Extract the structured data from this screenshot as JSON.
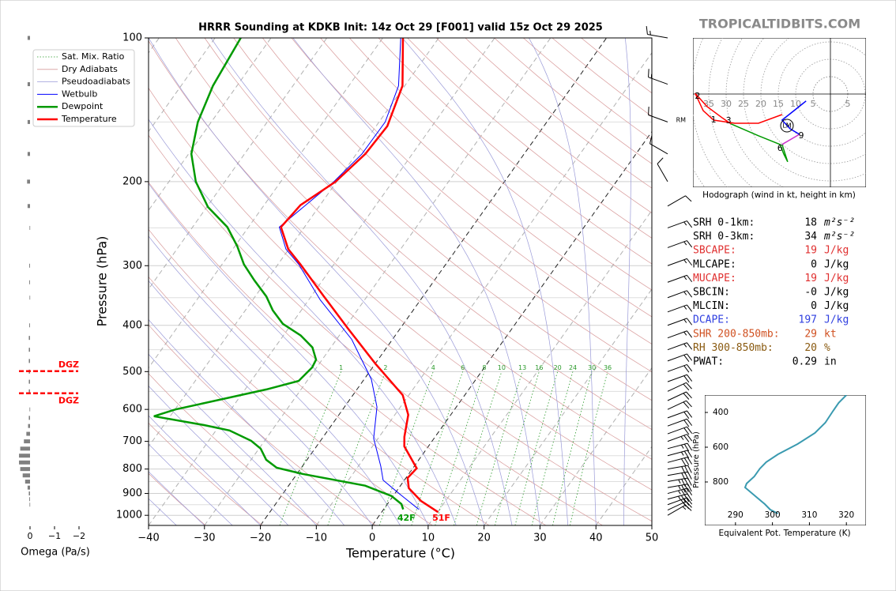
{
  "header": {
    "title": "HRRR Sounding at KDKB Init: 14z Oct 29 [F001] valid 15z Oct 29 2025",
    "watermark": "TROPICALTIDBITS.COM"
  },
  "chart_data": [
    {
      "type": "skewt",
      "xlabel": "Temperature (°C)",
      "ylabel": "Pressure (hPa)",
      "xlim": [
        -40,
        50
      ],
      "xticks": [
        {
          "value": -40,
          "label": "−40"
        },
        {
          "value": -30,
          "label": "−30"
        },
        {
          "value": -20,
          "label": "−20"
        },
        {
          "value": -10,
          "label": "−10"
        },
        0,
        10,
        20,
        30,
        40,
        50
      ],
      "ylim": [
        1050,
        100
      ],
      "yticks": [
        100,
        200,
        300,
        400,
        500,
        600,
        700,
        800,
        900,
        1000
      ],
      "log_y": true,
      "grid": true,
      "y_minor_grid": [
        150,
        250,
        350,
        450,
        550,
        650,
        750,
        850,
        950
      ],
      "reference_lines": [
        {
          "name": "Sat. Mix. Ratio",
          "color": "#2a9a2a"
        },
        {
          "name": "Dry Adiabats",
          "color": "#d89a9a"
        },
        {
          "name": "Pseudoadiabats",
          "color": "#9a9ad8"
        }
      ],
      "mixing_ratio_labels": [
        1,
        2,
        4,
        6,
        8,
        10,
        13,
        16,
        20,
        24,
        30,
        36
      ],
      "series": [
        {
          "name": "Wetbulb",
          "color": "#0000ff",
          "pressure": [
            972,
            901,
            844,
            789,
            690,
            593,
            519,
            428,
            354,
            298,
            277,
            249,
            200,
            175,
            150,
            126,
            100
          ],
          "values": [
            6.3,
            0.8,
            -3.8,
            -6.0,
            -10.8,
            -14.2,
            -18.7,
            -27.3,
            -37.9,
            -46.3,
            -50.5,
            -54.5,
            -50.5,
            -49.0,
            -48.9,
            -51.1,
            -56.8
          ]
        },
        {
          "name": "Dewpoint",
          "color": "#009a00",
          "pressure": [
            972,
            947,
            911,
            867,
            819,
            795,
            765,
            725,
            698,
            664,
            647,
            620,
            600,
            545,
            523,
            490,
            472,
            445,
            420,
            397,
            372,
            348,
            322,
            298,
            273,
            249,
            226,
            200,
            175,
            150,
            126,
            100
          ],
          "values": [
            3.5,
            2.5,
            -0.3,
            -6.3,
            -19.0,
            -24.4,
            -27.3,
            -29.7,
            -32.4,
            -37.6,
            -42.9,
            -52.9,
            -49.9,
            -36.2,
            -31.5,
            -30.8,
            -31.1,
            -33.3,
            -36.9,
            -41.6,
            -45.1,
            -48.0,
            -52.2,
            -56.1,
            -59.6,
            -63.8,
            -69.8,
            -75.2,
            -79.5,
            -82.4,
            -84.3,
            -85.4
          ]
        },
        {
          "name": "Temperature",
          "color": "#ff0000",
          "pressure": [
            985,
            933,
            877,
            835,
            797,
            717,
            685,
            616,
            560,
            481,
            405,
            348,
            298,
            277,
            249,
            224,
            200,
            175,
            153,
            126,
            100
          ],
          "values": [
            10.1,
            5.6,
            1.8,
            0.3,
            0.7,
            -4.3,
            -5.5,
            -7.6,
            -11.1,
            -20.0,
            -29.5,
            -37.7,
            -46.0,
            -50.1,
            -54.2,
            -53.5,
            -50.2,
            -48.4,
            -48.0,
            -50.4,
            -56.4
          ]
        }
      ],
      "surface_labels": [
        {
          "text": "42F",
          "series": 1,
          "color": "#009a00"
        },
        {
          "text": "51F",
          "series": 2,
          "color": "#ff0000"
        }
      ],
      "wind_barbs": {
        "pressure": [
          1000,
          975,
          950,
          925,
          900,
          875,
          850,
          825,
          800,
          775,
          750,
          725,
          700,
          675,
          650,
          625,
          600,
          575,
          550,
          525,
          500,
          475,
          450,
          425,
          400,
          375,
          350,
          325,
          300,
          275,
          250,
          225,
          200,
          175,
          150,
          125,
          100
        ],
        "speed": [
          15,
          20,
          30,
          35,
          35,
          35,
          35,
          30,
          30,
          30,
          25,
          25,
          25,
          20,
          20,
          20,
          20,
          20,
          20,
          20,
          20,
          20,
          15,
          15,
          15,
          15,
          15,
          15,
          15,
          15,
          15,
          10,
          10,
          10,
          10,
          15,
          15
        ],
        "direction": [
          60,
          65,
          70,
          75,
          75,
          80,
          80,
          80,
          80,
          75,
          75,
          75,
          70,
          70,
          70,
          70,
          65,
          65,
          65,
          70,
          70,
          70,
          70,
          70,
          70,
          70,
          70,
          70,
          70,
          70,
          70,
          60,
          330,
          300,
          290,
          290,
          280
        ]
      }
    },
    {
      "type": "bar",
      "xlabel": "Omega (Pa/s)",
      "xlim": [
        0.6,
        -2.6
      ],
      "xticks": [
        0,
        {
          "value": -1,
          "label": "−1"
        },
        {
          "value": -2,
          "label": "−2"
        }
      ],
      "color": "#808080",
      "pressure": [
        100,
        125,
        150,
        175,
        200,
        225,
        250,
        300,
        325,
        350,
        400,
        425,
        450,
        475,
        500,
        525,
        550,
        600,
        625,
        650,
        675,
        700,
        725,
        750,
        775,
        800,
        825,
        850,
        875,
        900,
        925,
        950
      ],
      "values": [
        0.1,
        0.1,
        0.1,
        0.1,
        0.12,
        0.1,
        0.02,
        0.03,
        0.03,
        0.02,
        0.03,
        0.05,
        0.05,
        0.05,
        0.05,
        0.05,
        0.05,
        0.02,
        0.05,
        0.08,
        0.15,
        0.25,
        0.4,
        0.45,
        0.45,
        0.4,
        0.3,
        0.2,
        0.1,
        0.05,
        0.03,
        0.02
      ],
      "dgz": [
        {
          "label": "DGZ",
          "pressure": 499,
          "color": "#ff0000"
        },
        {
          "label": "DGZ",
          "pressure": 555,
          "color": "#ff0000"
        }
      ]
    },
    {
      "type": "hodograph",
      "title": "Hodograph (wind in kt, height in km)",
      "ring_labels": [
        {
          "value": -35,
          "label": "35"
        },
        {
          "value": -30,
          "label": "30"
        },
        {
          "value": -25,
          "label": "25"
        },
        {
          "value": -20,
          "label": "20"
        },
        {
          "value": -15,
          "label": "15"
        },
        {
          "value": -10,
          "label": "10"
        },
        {
          "value": -5,
          "label": "5"
        },
        5
      ],
      "segments": [
        {
          "color": "#ff0000",
          "u": [
            -13.9,
            -20.7,
            -27.5,
            -33.6,
            -36.6,
            -38.9,
            -35.5,
            -30.9,
            -28.6
          ],
          "v": [
            -5.9,
            -8.4,
            -8.4,
            -7.5,
            -4.8,
            0.2,
            -3.6,
            -7.0,
            -8.6
          ]
        },
        {
          "color": "#009a00",
          "u": [
            -28.6,
            -20.7,
            -14.5,
            -13.4,
            -12.3,
            -13.9
          ],
          "v": [
            -8.6,
            -12.0,
            -14.5,
            -17.3,
            -19.5,
            -14.5
          ]
        },
        {
          "color": "#cc33cc",
          "u": [
            -13.9,
            -8.9
          ],
          "v": [
            -14.5,
            -11.6
          ]
        },
        {
          "color": "#0000ff",
          "u": [
            -8.9,
            -11.6,
            -13.9,
            -10.5,
            -7.0
          ],
          "v": [
            -11.6,
            -10.0,
            -7.5,
            -4.8,
            -2.0
          ]
        }
      ],
      "height_labels": [
        {
          "label": "1",
          "u": -33.6,
          "v": -7.5
        },
        {
          "label": "2",
          "u": -38.2,
          "v": -0.7
        },
        {
          "label": "3",
          "u": -29.3,
          "v": -7.7
        },
        {
          "label": "6",
          "u": -14.5,
          "v": -15.7
        },
        {
          "label": "9",
          "u": -8.4,
          "v": -12.0
        }
      ],
      "storm_motion": [
        {
          "label": "RM",
          "u": -43.0,
          "v": -7.5,
          "circle": false
        },
        {
          "label": "LM",
          "u": -12.5,
          "v": -9.1,
          "circle": true
        }
      ]
    },
    {
      "type": "line",
      "xlabel": "Equivalent Pot. Temperature (K)",
      "ylabel": "Pressure (hPa)",
      "color": "#3a9ab0",
      "xlim": [
        281.7,
        325.3
      ],
      "ylim": [
        1050,
        300
      ],
      "xticks": [
        290,
        300,
        310,
        320
      ],
      "yticks": [
        400,
        600,
        800
      ],
      "x": [
        301.5,
        299.4,
        297.9,
        295.1,
        292.6,
        293.0,
        295.1,
        296.6,
        298.3,
        301.5,
        306.8,
        311.5,
        314.3,
        316.4,
        317.9,
        320.0
      ],
      "y": [
        982,
        959,
        927,
        877,
        832,
        809,
        768,
        723,
        686,
        641,
        582,
        518,
        459,
        391,
        345,
        300
      ]
    }
  ],
  "parameters": [
    {
      "label": "SRH 0-1km:",
      "value": 18,
      "unit": "m²s⁻²",
      "color": "#000000"
    },
    {
      "label": "SRH 0-3km:",
      "value": 34,
      "unit": "m²s⁻²",
      "color": "#000000"
    },
    {
      "label": "SBCAPE:",
      "value": 19,
      "unit": "J/kg",
      "color": "#e03030"
    },
    {
      "label": "MLCAPE:",
      "value": 0,
      "unit": "J/kg",
      "color": "#000000"
    },
    {
      "label": "MUCAPE:",
      "value": 19,
      "unit": "J/kg",
      "color": "#e03030"
    },
    {
      "label": "SBCIN:",
      "value": "-0",
      "unit": "J/kg",
      "color": "#000000"
    },
    {
      "label": "MLCIN:",
      "value": 0,
      "unit": "J/kg",
      "color": "#000000"
    },
    {
      "label": "DCAPE:",
      "value": 197,
      "unit": "J/kg",
      "color": "#3040e0"
    },
    {
      "label": "SHR 200-850mb:",
      "value": 29,
      "unit": "kt",
      "color": "#d05020"
    },
    {
      "label": "RH 300-850mb:",
      "value": 20,
      "unit": "%",
      "color": "#8a5a10"
    },
    {
      "label": "PWAT:",
      "value": 0.29,
      "unit": "in",
      "color": "#000000"
    }
  ]
}
